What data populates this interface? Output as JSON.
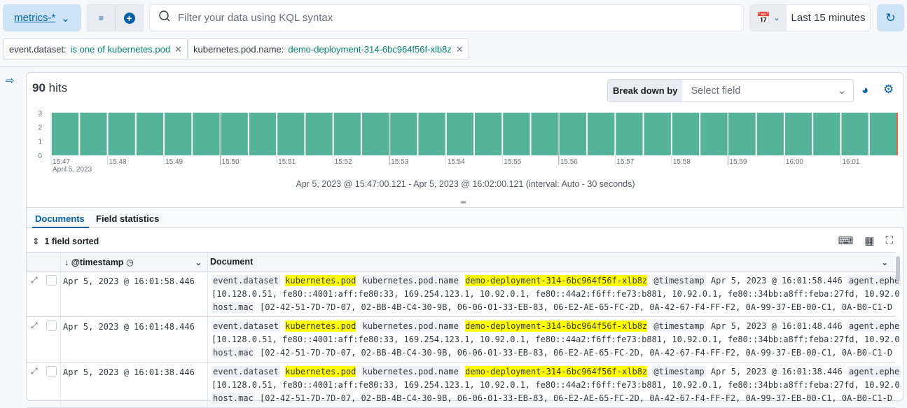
{
  "topbar": {
    "data_view": "metrics-*",
    "kql_placeholder": "Filter your data using KQL syntax",
    "time_range": "Last 15 minutes"
  },
  "filters": [
    {
      "field": "event.dataset:",
      "value": "is one of kubernetes.pod"
    },
    {
      "field": "kubernetes.pod.name:",
      "value": "demo-deployment-314-6bc964f56f-xlb8z"
    }
  ],
  "hits": {
    "count": "90",
    "label": "hits"
  },
  "breakdown": {
    "label": "Break down by",
    "placeholder": "Select field"
  },
  "chart_data": {
    "type": "bar",
    "interval": "30 seconds",
    "x_start": "15:47:00",
    "x_end": "16:02:00",
    "tick_labels": [
      "15:47",
      "15:48",
      "15:49",
      "15:50",
      "15:51",
      "15:52",
      "15:53",
      "15:54",
      "15:55",
      "15:56",
      "15:57",
      "15:58",
      "15:59",
      "16:00",
      "16:01"
    ],
    "x_sublabel": "April 5, 2023",
    "y_ticks": [
      "0",
      "1",
      "2",
      "3"
    ],
    "ylim": [
      0,
      3
    ],
    "values": [
      3,
      3,
      3,
      3,
      3,
      3,
      3,
      3,
      3,
      3,
      3,
      3,
      3,
      3,
      3,
      3,
      3,
      3,
      3,
      3,
      3,
      3,
      3,
      3,
      3,
      3,
      3,
      3,
      3,
      3
    ],
    "bar_color": "#54b399",
    "now_marker_color": "#e7664c"
  },
  "range_text": "Apr 5, 2023 @ 15:47:00.121 - Apr 5, 2023 @ 16:02:00.121 (interval: Auto - 30 seconds)",
  "tabs": [
    {
      "label": "Documents"
    },
    {
      "label": "Field statistics"
    }
  ],
  "sorted_label": "1 field sorted",
  "columns": {
    "timestamp": "@timestamp",
    "document": "Document"
  },
  "doc_labels": {
    "k1": "event.dataset",
    "v1": "kubernetes.pod",
    "k2": "kubernetes.pod.name",
    "v2": "demo-deployment-314-6bc964f56f-xlb8z",
    "k3": "@timestamp",
    "k4": "agent.ephe",
    "ips": "[10.128.0.51, fe80::4001:aff:fe80:33, 169.254.123.1, 10.92.0.1, fe80::44a2:f6ff:fe73:b881, 10.92.0.1, fe80::34bb:a8ff:feba:27fd, 10.92.0",
    "k5": "host.mac",
    "macs": "[02-42-51-7D-7D-07, 02-BB-4B-C4-30-9B, 06-06-01-33-EB-83, 06-E2-AE-65-FC-2D, 0A-42-67-F4-FF-F2, 0A-99-37-EB-00-C1, 0A-B0-C1-D"
  },
  "rows": [
    {
      "timestamp": "Apr 5, 2023 @ 16:01:58.446"
    },
    {
      "timestamp": "Apr 5, 2023 @ 16:01:48.446"
    },
    {
      "timestamp": "Apr 5, 2023 @ 16:01:38.446"
    }
  ]
}
